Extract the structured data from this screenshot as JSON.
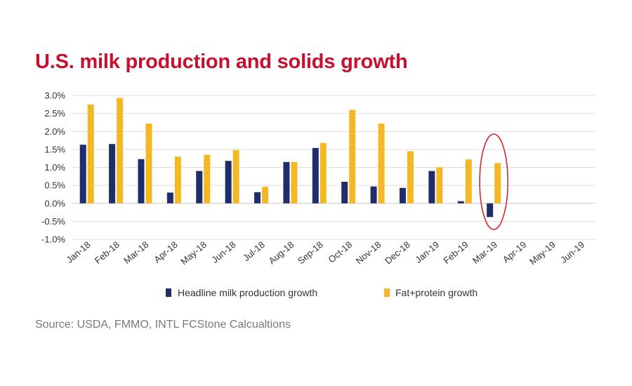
{
  "title": "U.S. milk production and solids growth",
  "source": "Source: USDA, FMMO, INTL FCStone Calcualtions",
  "chart_data": {
    "type": "bar",
    "categories": [
      "Jan-18",
      "Feb-18",
      "Mar-18",
      "Apr-18",
      "May-18",
      "Jun-18",
      "Jul-18",
      "Aug-18",
      "Sep-18",
      "Oct-18",
      "Nov-18",
      "Dec-18",
      "Jan-19",
      "Feb-19",
      "Mar-19",
      "Apr-19",
      "May-19",
      "Jun-19"
    ],
    "series": [
      {
        "name": "Headline milk production growth",
        "color": "#1f2d6b",
        "values": [
          1.63,
          1.65,
          1.23,
          0.3,
          0.9,
          1.18,
          0.31,
          1.15,
          1.54,
          0.6,
          0.47,
          0.43,
          0.9,
          0.06,
          -0.38,
          null,
          null,
          null
        ]
      },
      {
        "name": "Fat+protein growth",
        "color": "#f4b824",
        "values": [
          2.75,
          2.93,
          2.22,
          1.3,
          1.35,
          1.48,
          0.46,
          1.15,
          1.68,
          2.6,
          2.22,
          1.45,
          1.0,
          1.22,
          1.12,
          null,
          null,
          null
        ]
      }
    ],
    "yticks": [
      "3.0%",
      "2.5%",
      "2.0%",
      "1.5%",
      "1.0%",
      "0.5%",
      "0.0%",
      "-0.5%",
      "-1.0%"
    ],
    "ylim": [
      -1.0,
      3.0
    ],
    "grid": true,
    "legend": "bottom",
    "annotation": {
      "type": "ellipse",
      "category": "Mar-19",
      "color": "#d7262b"
    }
  }
}
